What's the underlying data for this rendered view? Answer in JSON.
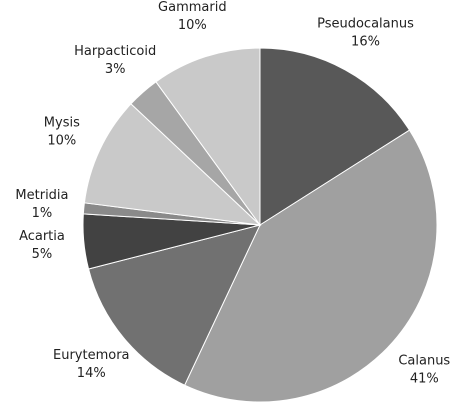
{
  "chart_data": {
    "type": "pie",
    "categories": [
      "Pseudocalanus",
      "Calanus",
      "Eurytemora",
      "Acartia",
      "Metridia",
      "Mysis",
      "Harpacticoid",
      "Gammarid"
    ],
    "values": [
      16,
      41,
      14,
      5,
      1,
      10,
      3,
      10
    ],
    "value_labels": [
      "16%",
      "41%",
      "14%",
      "5%",
      "1%",
      "10%",
      "3%",
      "10%"
    ],
    "colors": [
      "#585858",
      "#a0a0a0",
      "#717171",
      "#424242",
      "#8a8a8a",
      "#c9c9c9",
      "#a6a6a6",
      "#c9c9c9"
    ]
  }
}
